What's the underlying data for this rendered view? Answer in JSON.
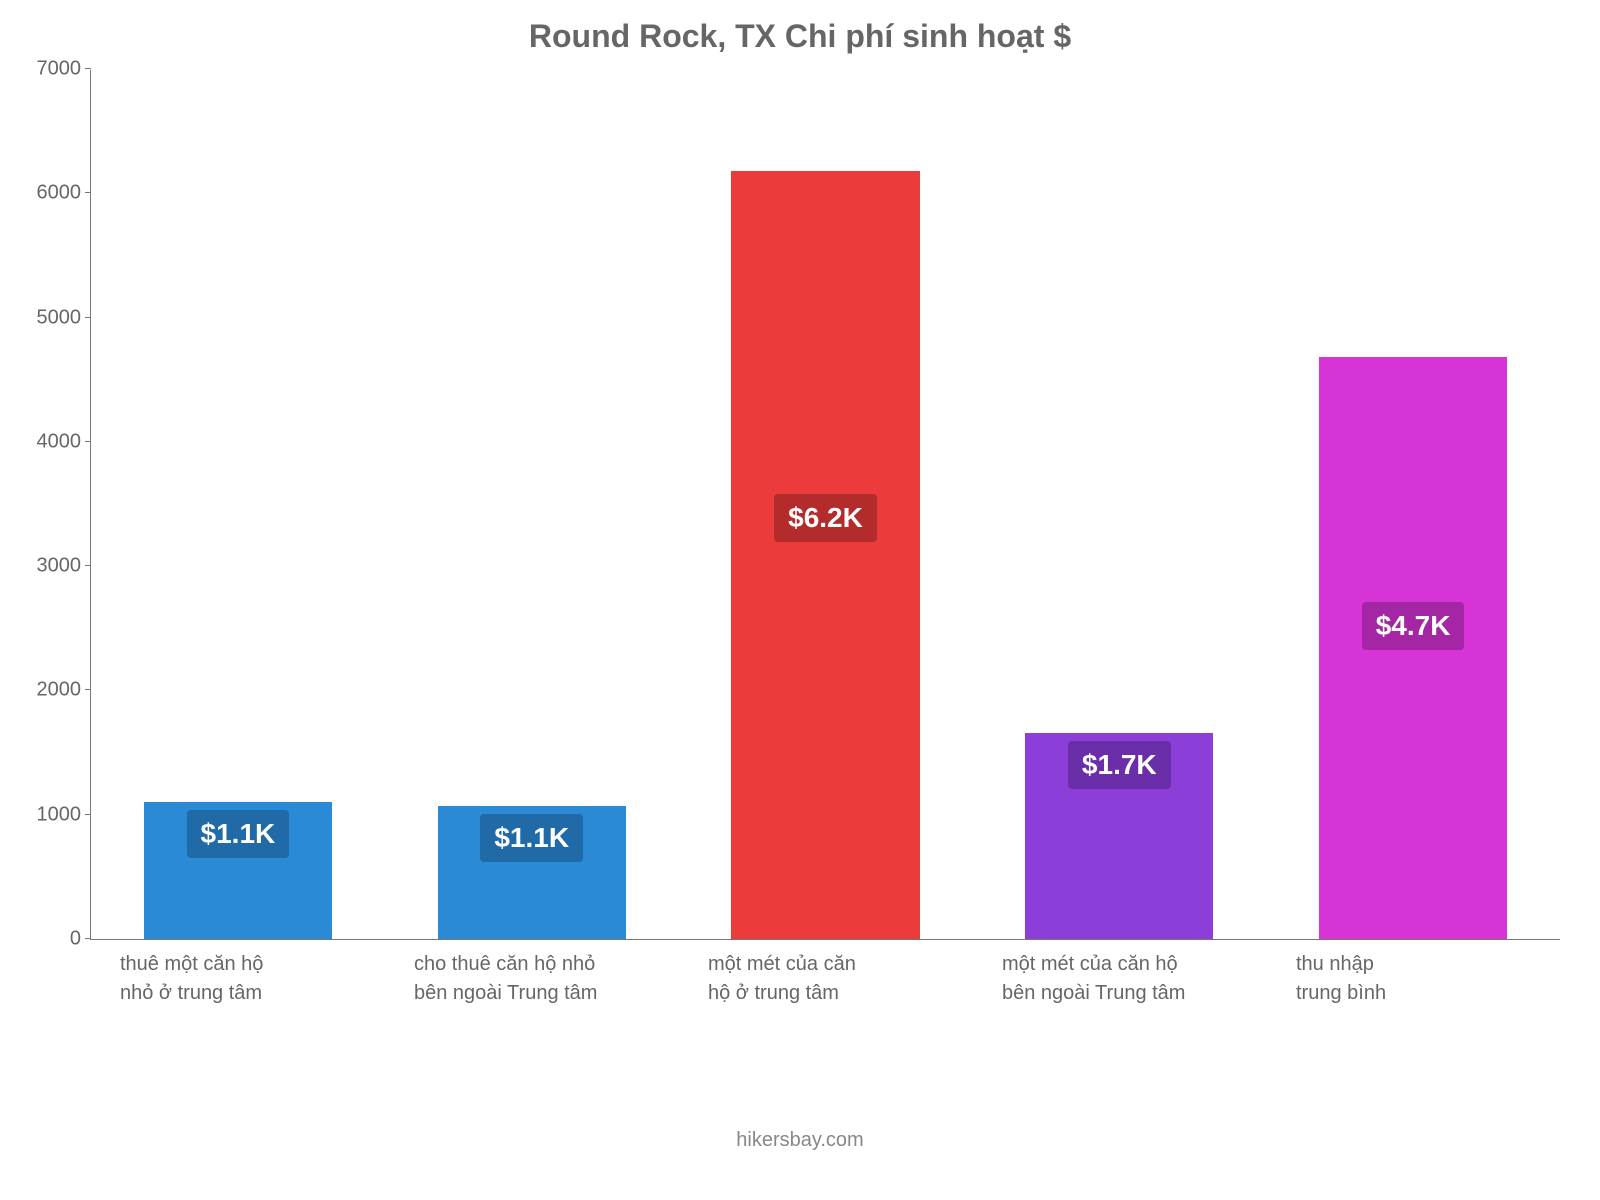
{
  "chart": {
    "type": "bar",
    "title": "Round Rock, TX Chi phí sinh hoạt $",
    "title_fontsize": 32,
    "title_color": "#666666",
    "background_color": "#ffffff",
    "axis_color": "#777777",
    "tick_label_color": "#666666",
    "tick_label_fontsize": 20,
    "ylim": [
      0,
      7000
    ],
    "ytick_step": 1000,
    "yticks": [
      0,
      1000,
      2000,
      3000,
      4000,
      5000,
      6000,
      7000
    ],
    "bar_width_ratio": 0.64,
    "categories": [
      "thuê một căn hộ nhỏ ở trung tâm",
      "cho thuê căn hộ nhỏ bên ngoài Trung tâm",
      "một mét của căn hộ ở trung tâm",
      "một mét của căn hộ bên ngoài Trung tâm",
      "thu nhập trung bình"
    ],
    "values": [
      1100,
      1070,
      6180,
      1660,
      4680
    ],
    "value_labels": [
      "$1.1K",
      "$1.1K",
      "$6.2K",
      "$1.7K",
      "$4.7K"
    ],
    "bar_colors": [
      "#2b8ad6",
      "#2b8ad6",
      "#eb3b3b",
      "#8b3ed8",
      "#d634d6"
    ],
    "label_bg_colors": [
      "#1f6aa7",
      "#1f6aa7",
      "#b32b2b",
      "#6a2ea8",
      "#a526a5"
    ],
    "value_label_color": "#ffffff",
    "value_label_fontsize": 28
  },
  "footer": "hikersbay.com"
}
